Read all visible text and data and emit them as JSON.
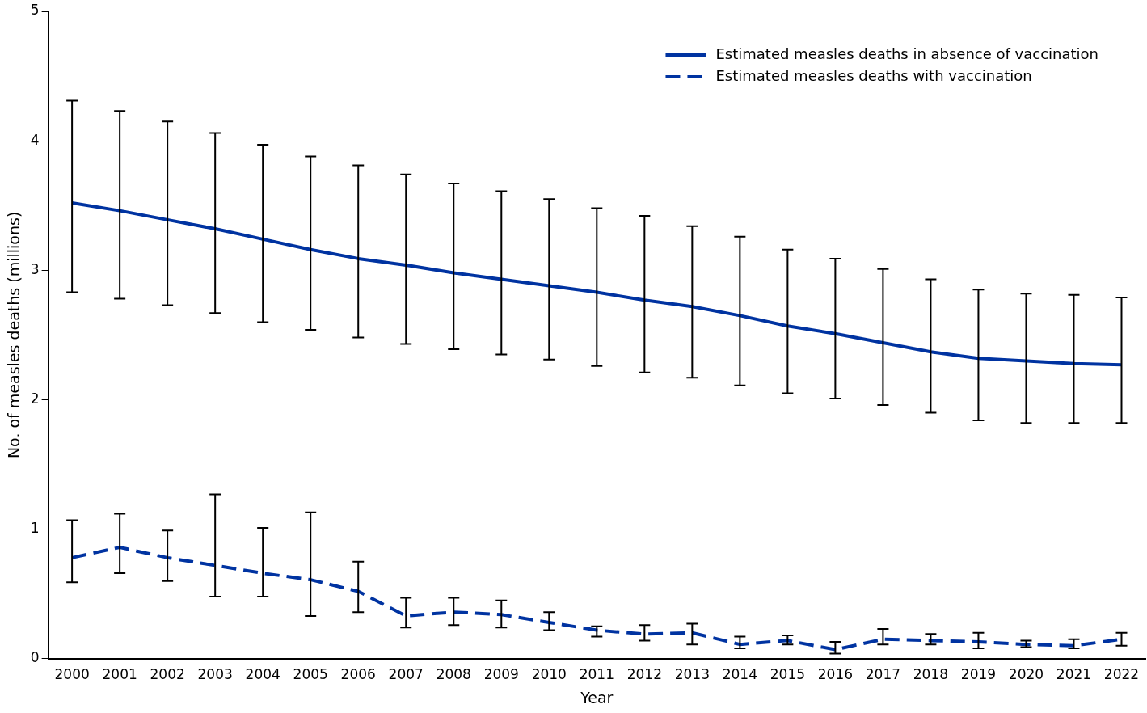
{
  "chart_data": {
    "type": "line",
    "xlabel": "Year",
    "ylabel": "No. of measles deaths (millions)",
    "categories": [
      "2000",
      "2001",
      "2002",
      "2003",
      "2004",
      "2005",
      "2006",
      "2007",
      "2008",
      "2009",
      "2010",
      "2011",
      "2012",
      "2013",
      "2014",
      "2015",
      "2016",
      "2017",
      "2018",
      "2019",
      "2020",
      "2021",
      "2022"
    ],
    "series": [
      {
        "name": "Estimated measles deaths in absence of vaccination",
        "color": "#0033a1",
        "line_style": "solid",
        "values": [
          3.52,
          3.46,
          3.39,
          3.32,
          3.24,
          3.16,
          3.09,
          3.04,
          2.98,
          2.93,
          2.88,
          2.83,
          2.77,
          2.72,
          2.65,
          2.57,
          2.51,
          2.44,
          2.37,
          2.32,
          2.3,
          2.28,
          2.27
        ],
        "errors": [
          [
            2.83,
            4.31
          ],
          [
            2.78,
            4.23
          ],
          [
            2.73,
            4.15
          ],
          [
            2.67,
            4.06
          ],
          [
            2.6,
            3.97
          ],
          [
            2.54,
            3.88
          ],
          [
            2.48,
            3.81
          ],
          [
            2.43,
            3.74
          ],
          [
            2.39,
            3.67
          ],
          [
            2.35,
            3.61
          ],
          [
            2.31,
            3.55
          ],
          [
            2.26,
            3.48
          ],
          [
            2.21,
            3.42
          ],
          [
            2.17,
            3.34
          ],
          [
            2.11,
            3.26
          ],
          [
            2.05,
            3.16
          ],
          [
            2.01,
            3.09
          ],
          [
            1.96,
            3.01
          ],
          [
            1.9,
            2.93
          ],
          [
            1.84,
            2.85
          ],
          [
            1.82,
            2.82
          ],
          [
            1.82,
            2.81
          ],
          [
            1.82,
            2.79
          ]
        ]
      },
      {
        "name": "Estimated measles deaths with vaccination",
        "color": "#0033a1",
        "line_style": "dashed",
        "values": [
          0.78,
          0.86,
          0.78,
          0.72,
          0.66,
          0.61,
          0.52,
          0.33,
          0.36,
          0.34,
          0.28,
          0.22,
          0.19,
          0.2,
          0.11,
          0.14,
          0.07,
          0.15,
          0.14,
          0.13,
          0.11,
          0.1,
          0.15
        ],
        "errors": [
          [
            0.59,
            1.07
          ],
          [
            0.66,
            1.12
          ],
          [
            0.6,
            0.99
          ],
          [
            0.48,
            1.27
          ],
          [
            0.48,
            1.01
          ],
          [
            0.33,
            1.13
          ],
          [
            0.36,
            0.75
          ],
          [
            0.24,
            0.47
          ],
          [
            0.26,
            0.47
          ],
          [
            0.24,
            0.45
          ],
          [
            0.22,
            0.36
          ],
          [
            0.17,
            0.25
          ],
          [
            0.14,
            0.26
          ],
          [
            0.11,
            0.27
          ],
          [
            0.08,
            0.17
          ],
          [
            0.11,
            0.18
          ],
          [
            0.04,
            0.13
          ],
          [
            0.11,
            0.23
          ],
          [
            0.11,
            0.19
          ],
          [
            0.08,
            0.2
          ],
          [
            0.09,
            0.14
          ],
          [
            0.08,
            0.15
          ],
          [
            0.1,
            0.2
          ]
        ]
      }
    ],
    "ylim": [
      0,
      5
    ],
    "yticks": [
      0,
      1,
      2,
      3,
      4,
      5
    ],
    "grid": false,
    "legend": "top right",
    "marker": "none"
  }
}
